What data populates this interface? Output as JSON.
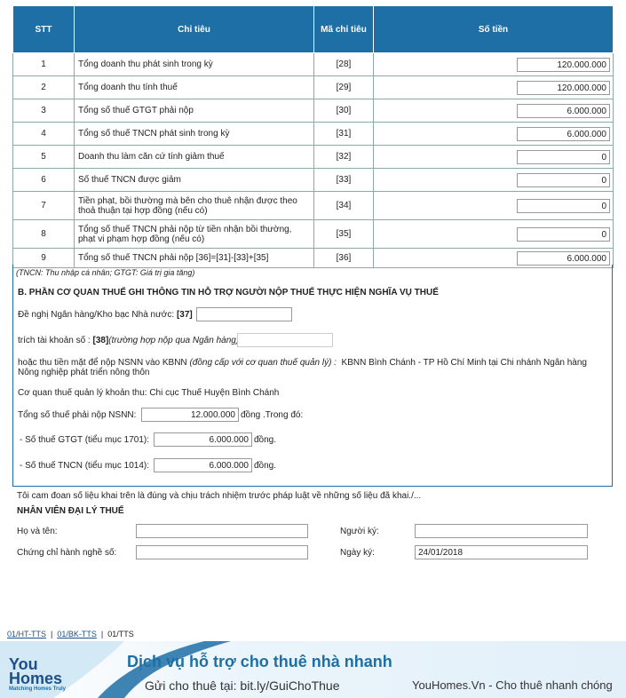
{
  "table": {
    "headers": [
      "STT",
      "Chỉ tiêu",
      "Mã chỉ tiêu",
      "Số tiền"
    ],
    "rows": [
      [
        "1",
        "Tổng doanh thu phát sinh trong kỳ",
        "[28]",
        "120.000.000"
      ],
      [
        "2",
        "Tổng doanh thu tính thuế",
        "[29]",
        "120.000.000"
      ],
      [
        "3",
        "Tổng số thuế GTGT phải nộp",
        "[30]",
        "6.000.000"
      ],
      [
        "4",
        "Tổng số thuế TNCN phát sinh trong kỳ",
        "[31]",
        "6.000.000"
      ],
      [
        "5",
        "Doanh thu làm căn cứ tính giảm thuế",
        "[32]",
        "0"
      ],
      [
        "6",
        "Số thuế TNCN được giảm",
        "[33]",
        "0"
      ],
      [
        "7",
        "Tiền phạt, bồi thường mà bên cho thuê nhận được theo thoả thuận tại hợp đồng (nếu có)",
        "[34]",
        "0"
      ],
      [
        "8",
        "Tổng số thuế TNCN phải nộp từ tiền nhận bồi thường, phạt vi phạm hợp đồng (nếu có)",
        "[35]",
        "0"
      ],
      [
        "9",
        "Tổng số thuế TNCN phải nộp [36]=[31]-[33]+[35]",
        "[36]",
        "6.000.000"
      ]
    ],
    "note": "(TNCN: Thu nhập cá nhân; GTGT: Giá trị gia tăng)"
  },
  "section_b": {
    "title": "B. PHẦN CƠ QUAN THUẾ GHI THÔNG TIN HỖ TRỢ NGƯỜI NỘP THUẾ THỰC HIỆN NGHĨA VỤ THUẾ",
    "bank": {
      "label": "Đề nghị Ngân hàng/Kho bạc Nhà nước:",
      "code": "[37]"
    },
    "account": {
      "label": "trích tài khoản số :",
      "code": "[38]",
      "hint": "(trường hợp nộp qua Ngân hàng)"
    },
    "cash": {
      "label": "hoặc thu tiền mặt để nộp NSNN vào KBNN",
      "hint": "(đồng cấp với cơ quan thuế quản lý) :",
      "value": "KBNN Bình Chánh - TP Hồ Chí Minh tại Chi nhánh Ngân hàng Nông nghiệp phát triển nông thôn"
    },
    "agency": "Cơ quan thuế quản lý khoản thu: Chi cục Thuế Huyện Bình Chánh",
    "total": {
      "label": "Tổng số thuế phải nộp NSNN:",
      "value": "12.000.000",
      "suffix": "đồng .Trong đó:"
    },
    "gtgt": {
      "label": "- Số thuế GTGT (tiểu mục 1701):",
      "value": "6.000.000",
      "suffix": "đồng."
    },
    "tncn": {
      "label": "- Số thuế TNCN (tiểu mục 1014):",
      "value": "6.000.000",
      "suffix": "đồng."
    }
  },
  "commitment": "Tôi cam đoan số liệu khai trên là đúng và chịu trách nhiệm trước pháp luật về những số liệu đã khai./...",
  "agent": {
    "title": "NHÂN VIÊN ĐẠI LÝ THUẾ",
    "name_label": "Họ và tên:",
    "signer_label": "Người ký:",
    "cert_label": "Chứng chỉ hành nghề số:",
    "date_label": "Ngày ký:",
    "date": "24/01/2018"
  },
  "tabs": [
    "01/HT-TTS",
    "01/BK-TTS",
    "01/TTS"
  ],
  "banner": {
    "logo_top": "You",
    "logo_bottom": "Homes",
    "logo_tagline": "Matching Homes Truly",
    "title": "Dịch vụ hỗ trợ cho thuê nhà nhanh",
    "subtitle": "Gửi cho thuê tại: bit.ly/GuiChoThue",
    "site": "YouHomes.Vn - Cho thuê nhanh chóng"
  }
}
